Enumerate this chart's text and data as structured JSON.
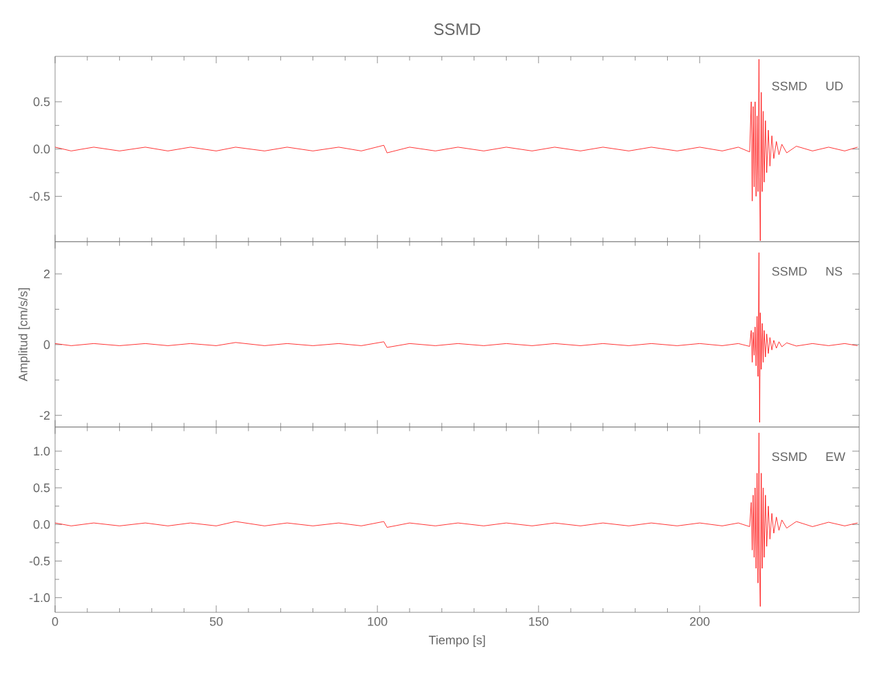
{
  "chart_data": [
    {
      "type": "line",
      "title": "SSMD",
      "annotations": [
        "SSMD",
        "UD"
      ],
      "color": "#ff0000",
      "tick_labels": "y",
      "x": [
        0,
        5,
        12,
        20,
        28,
        35,
        42,
        50,
        56,
        65,
        72,
        80,
        88,
        95,
        102,
        103,
        110,
        118,
        125,
        133,
        140,
        148,
        155,
        163,
        170,
        178,
        185,
        193,
        200,
        207,
        212,
        215.5,
        216,
        216.3,
        216.6,
        216.9,
        217.2,
        217.5,
        217.8,
        218.1,
        218.4,
        218.6,
        218.8,
        219.1,
        219.4,
        219.7,
        220,
        220.4,
        220.8,
        221.3,
        221.8,
        222.4,
        223,
        223.8,
        224.6,
        225.5,
        227,
        230,
        235,
        240,
        245,
        249
      ],
      "values": [
        0.02,
        -0.02,
        0.02,
        -0.02,
        0.02,
        -0.02,
        0.02,
        -0.02,
        0.02,
        -0.02,
        0.02,
        -0.02,
        0.02,
        -0.02,
        0.04,
        -0.04,
        0.02,
        -0.02,
        0.02,
        -0.02,
        0.02,
        -0.02,
        0.02,
        -0.02,
        0.02,
        -0.02,
        0.02,
        -0.02,
        0.02,
        -0.02,
        0.02,
        -0.03,
        0.5,
        -0.55,
        0.45,
        -0.4,
        0.5,
        -0.5,
        0.35,
        -0.45,
        0.95,
        -0.3,
        -0.97,
        0.6,
        -0.45,
        0.4,
        -0.35,
        0.3,
        -0.25,
        0.2,
        -0.18,
        0.14,
        -0.1,
        0.08,
        -0.06,
        0.05,
        -0.04,
        0.03,
        -0.02,
        0.02,
        -0.02,
        0.02
      ],
      "xlim": [
        0,
        249.5
      ],
      "xticks": [
        0,
        50,
        100,
        150,
        200
      ],
      "ylim": [
        -0.98,
        0.98
      ],
      "yticks": [
        -0.5,
        {
          "value": 0,
          "label": "0.0"
        },
        0.5
      ]
    },
    {
      "type": "line",
      "ylabel": "Amplitud [cm/s/s]",
      "annotations": [
        "SSMD",
        "NS"
      ],
      "color": "#ff0000",
      "tick_labels": "y",
      "x": [
        0,
        5,
        12,
        20,
        28,
        35,
        42,
        50,
        56,
        65,
        72,
        80,
        88,
        95,
        102,
        103,
        110,
        118,
        125,
        133,
        140,
        148,
        155,
        163,
        170,
        178,
        185,
        193,
        200,
        207,
        212,
        215.5,
        216,
        216.3,
        216.6,
        216.9,
        217.2,
        217.5,
        217.8,
        218.1,
        218.4,
        218.6,
        218.8,
        219.1,
        219.4,
        219.7,
        220,
        220.4,
        220.8,
        221.3,
        221.8,
        222.4,
        223,
        223.8,
        224.6,
        225.5,
        227,
        230,
        235,
        240,
        245,
        249
      ],
      "values": [
        0.03,
        -0.03,
        0.03,
        -0.03,
        0.03,
        -0.03,
        0.03,
        -0.03,
        0.06,
        -0.03,
        0.03,
        -0.03,
        0.03,
        -0.03,
        0.08,
        -0.08,
        0.03,
        -0.03,
        0.03,
        -0.03,
        0.03,
        -0.03,
        0.03,
        -0.03,
        0.03,
        -0.03,
        0.03,
        -0.03,
        0.03,
        -0.03,
        0.03,
        -0.05,
        0.4,
        -0.5,
        0.35,
        -0.3,
        0.5,
        -0.6,
        0.8,
        -0.9,
        2.6,
        -2.2,
        0.9,
        -0.7,
        0.6,
        -0.5,
        0.4,
        -0.35,
        0.3,
        -0.25,
        0.2,
        -0.15,
        0.12,
        -0.1,
        0.08,
        -0.06,
        0.05,
        -0.04,
        0.03,
        -0.03,
        0.03,
        -0.03
      ],
      "xlim": [
        0,
        249.5
      ],
      "xticks": [
        0,
        50,
        100,
        150,
        200
      ],
      "ylim": [
        -2.33,
        2.91
      ],
      "yticks": [
        -2,
        0,
        2
      ]
    },
    {
      "type": "line",
      "xlabel": "Tiempo [s]",
      "annotations": [
        "SSMD",
        "EW"
      ],
      "color": "#ff0000",
      "x": [
        0,
        5,
        12,
        20,
        28,
        35,
        42,
        50,
        56,
        65,
        72,
        80,
        88,
        95,
        102,
        103,
        110,
        118,
        125,
        133,
        140,
        148,
        155,
        163,
        170,
        178,
        185,
        193,
        200,
        207,
        212,
        215.5,
        216,
        216.3,
        216.6,
        216.9,
        217.2,
        217.5,
        217.8,
        218.1,
        218.4,
        218.6,
        218.8,
        219.1,
        219.4,
        219.7,
        220,
        220.4,
        220.8,
        221.3,
        221.8,
        222.4,
        223,
        223.8,
        224.6,
        225.5,
        227,
        230,
        235,
        240,
        245,
        249
      ],
      "values": [
        0.02,
        -0.02,
        0.02,
        -0.02,
        0.02,
        -0.02,
        0.02,
        -0.02,
        0.04,
        -0.02,
        0.02,
        -0.02,
        0.02,
        -0.02,
        0.04,
        -0.04,
        0.02,
        -0.02,
        0.02,
        -0.02,
        0.02,
        -0.02,
        0.02,
        -0.02,
        0.02,
        -0.02,
        0.02,
        -0.02,
        0.02,
        -0.02,
        0.02,
        -0.03,
        0.3,
        -0.35,
        0.4,
        -0.45,
        0.5,
        -0.6,
        0.7,
        -0.8,
        1.25,
        -0.6,
        -1.12,
        0.7,
        -0.6,
        0.5,
        -0.45,
        0.4,
        -0.3,
        0.25,
        -0.2,
        0.15,
        -0.12,
        0.1,
        -0.08,
        0.06,
        -0.05,
        0.04,
        -0.03,
        0.03,
        -0.02,
        0.02
      ],
      "xlim": [
        0,
        249.5
      ],
      "xticks": [
        0,
        50,
        100,
        150,
        200
      ],
      "ylim": [
        -1.2,
        1.33
      ],
      "yticks": [
        {
          "value": -1,
          "label": "-1.0"
        },
        -0.5,
        {
          "value": 0,
          "label": "0.0"
        },
        0.5,
        {
          "value": 1,
          "label": "1.0"
        }
      ]
    }
  ]
}
